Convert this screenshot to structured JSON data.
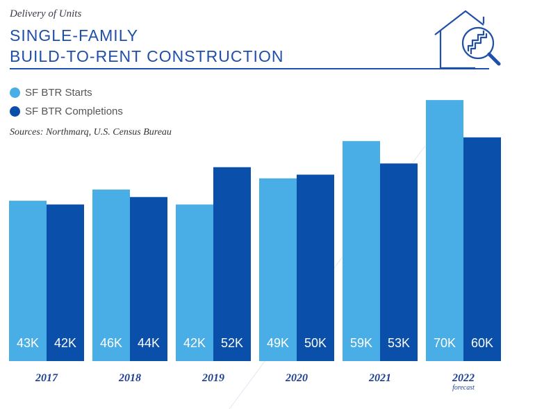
{
  "header": {
    "subtitle": "Delivery of Units",
    "title_line1": "SINGLE-FAMILY",
    "title_line2": "BUILD-TO-RENT CONSTRUCTION",
    "sources": "Sources: Northmarq, U.S. Census Bureau",
    "icon": "house-magnifier-icon"
  },
  "colors": {
    "starts": "#4aaee6",
    "completions": "#0a4faa",
    "title": "#1f4fa8",
    "year_label": "#1f3f8f"
  },
  "chart_data": {
    "type": "bar",
    "title": "Single-Family Build-to-Rent Construction",
    "xlabel": "",
    "ylabel": "Delivery of Units",
    "categories": [
      "2017",
      "2018",
      "2019",
      "2020",
      "2021",
      "2022"
    ],
    "category_notes": [
      "",
      "",
      "",
      "",
      "",
      "forecast"
    ],
    "series": [
      {
        "name": "SF BTR Starts",
        "values": [
          43,
          46,
          42,
          49,
          59,
          70
        ],
        "labels": [
          "43K",
          "46K",
          "42K",
          "49K",
          "59K",
          "70K"
        ]
      },
      {
        "name": "SF BTR Completions",
        "values": [
          42,
          44,
          52,
          50,
          53,
          60
        ],
        "labels": [
          "42K",
          "44K",
          "52K",
          "50K",
          "53K",
          "60K"
        ]
      }
    ],
    "ylim": [
      0,
      70
    ],
    "grid": false,
    "legend_position": "top-left"
  }
}
